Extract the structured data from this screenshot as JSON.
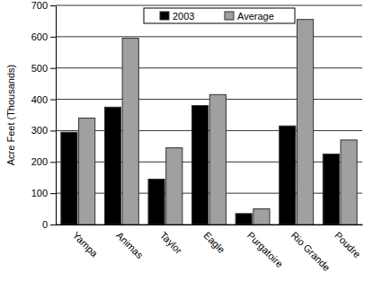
{
  "chart_data": {
    "type": "bar",
    "y_label": "Acre Feet (Thousands)",
    "categories": [
      "Yampa",
      "Animas",
      "Taylor",
      "Eagle",
      "Purgatoire",
      "Rio Grande",
      "Poudre"
    ],
    "series": [
      {
        "name": "2003",
        "color": "#000000",
        "values": [
          295,
          375,
          145,
          380,
          35,
          315,
          225
        ]
      },
      {
        "name": "Average",
        "color": "#a0a0a0",
        "values": [
          340,
          595,
          245,
          415,
          50,
          655,
          270
        ]
      }
    ],
    "ylim": [
      0,
      700
    ],
    "yticks": [
      0,
      100,
      200,
      300,
      400,
      500,
      600,
      700
    ],
    "grid": true,
    "legend": "top"
  }
}
